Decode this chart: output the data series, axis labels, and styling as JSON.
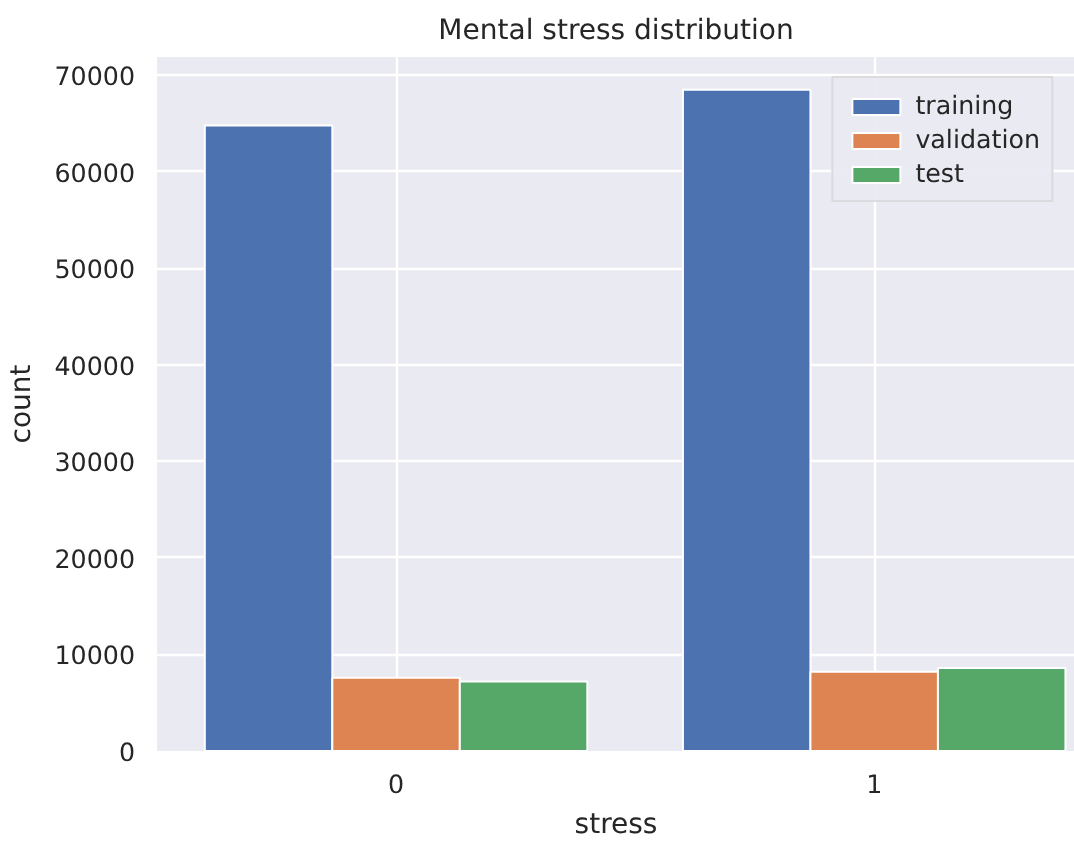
{
  "chart_data": {
    "type": "bar",
    "title": "Mental stress distribution",
    "xlabel": "stress",
    "ylabel": "count",
    "categories": [
      "0",
      "1"
    ],
    "series": [
      {
        "name": "training",
        "color": "#4c72b0",
        "values": [
          64800,
          68500
        ]
      },
      {
        "name": "validation",
        "color": "#dd8452",
        "values": [
          7600,
          8200
        ]
      },
      {
        "name": "test",
        "color": "#55a868",
        "values": [
          7200,
          8600
        ]
      }
    ],
    "ylim": [
      0,
      71900
    ],
    "yticks": [
      0,
      10000,
      20000,
      30000,
      40000,
      50000,
      60000,
      70000
    ],
    "grid": true,
    "legend": "top right"
  }
}
